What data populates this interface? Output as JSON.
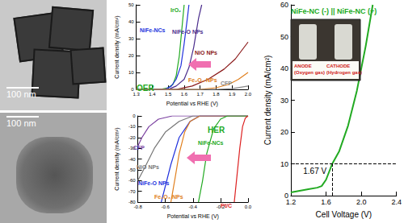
{
  "images": [
    {
      "scale_bar": "100 nm"
    },
    {
      "scale_bar": "100 nm"
    }
  ],
  "chart_data": [
    {
      "type": "line",
      "title": "OER",
      "title_color": "#22aa22",
      "xlabel": "Potential vs RHE (V)",
      "ylabel": "Current density (mA/cm²)",
      "xlim": [
        1.3,
        2.0
      ],
      "xticks": [
        1.3,
        1.4,
        1.5,
        1.6,
        1.7,
        1.8,
        1.9,
        {
          "value": 2.0,
          "label": "2.0"
        }
      ],
      "ylim": [
        0,
        50
      ],
      "yticks": [
        0,
        10,
        20,
        30,
        40,
        50
      ],
      "grid": false,
      "series": [
        {
          "name": "IrO₂",
          "color": "#22aa22",
          "x": [
            1.3,
            1.45,
            1.5,
            1.53,
            1.55,
            1.57,
            1.59,
            1.6
          ],
          "values": [
            0,
            0,
            1,
            3,
            8,
            20,
            40,
            50
          ]
        },
        {
          "name": "NiFe-NCs",
          "color": "#2233dd",
          "x": [
            1.3,
            1.48,
            1.52,
            1.55,
            1.58,
            1.6,
            1.62,
            1.63
          ],
          "values": [
            0,
            0,
            2,
            6,
            14,
            27,
            42,
            50
          ]
        },
        {
          "name": "NiFe-O NPs",
          "color": "#4a2c8c",
          "x": [
            1.3,
            1.5,
            1.55,
            1.6,
            1.63,
            1.66,
            1.69,
            1.71
          ],
          "values": [
            0,
            0,
            2,
            6,
            13,
            25,
            42,
            50
          ]
        },
        {
          "name": "NiO NPs",
          "color": "#8b1a1a",
          "x": [
            1.3,
            1.55,
            1.65,
            1.75,
            1.85,
            1.92,
            2.0
          ],
          "values": [
            0,
            0,
            2,
            6,
            12,
            18,
            28
          ]
        },
        {
          "name": "Fe₂O₃ NPs",
          "color": "#e08020",
          "x": [
            1.3,
            1.7,
            1.8,
            1.88,
            1.94,
            2.0
          ],
          "values": [
            0,
            0,
            1,
            3,
            6,
            10
          ]
        },
        {
          "name": "CFP",
          "color": "#888888",
          "x": [
            1.3,
            1.8,
            1.9,
            2.0
          ],
          "values": [
            0,
            0,
            0.5,
            2
          ]
        }
      ]
    },
    {
      "type": "line",
      "title": "HER",
      "title_color": "#22aa22",
      "xlabel": "Potential vs RHE (V)",
      "ylabel": "Current density (mA/cm²)",
      "xlim": [
        -0.8,
        0.0
      ],
      "xticks": [
        -0.8,
        -0.6,
        -0.4,
        -0.2,
        {
          "value": 0,
          "label": "0.0"
        }
      ],
      "ylim": [
        -80,
        0
      ],
      "yticks": [
        -80,
        -70,
        -60,
        -50,
        -40,
        -30,
        -20,
        -10,
        0
      ],
      "grid": false,
      "series": [
        {
          "name": "CFP",
          "color": "#7a3fa0",
          "x": [
            0,
            -0.55,
            -0.65,
            -0.72,
            -0.77,
            -0.8
          ],
          "values": [
            0,
            0,
            -3,
            -10,
            -20,
            -28
          ]
        },
        {
          "name": "NiO NPs",
          "color": "#777777",
          "x": [
            0,
            -0.4,
            -0.5,
            -0.6,
            -0.68,
            -0.75,
            -0.8
          ],
          "values": [
            0,
            0,
            -5,
            -15,
            -30,
            -48,
            -60
          ]
        },
        {
          "name": "NiFe-O NPs",
          "color": "#2233dd",
          "x": [
            0,
            -0.35,
            -0.42,
            -0.5,
            -0.56,
            -0.6,
            -0.63
          ],
          "values": [
            0,
            0,
            -5,
            -20,
            -45,
            -65,
            -80
          ]
        },
        {
          "name": "Fe₂O₃ NPs",
          "color": "#e08020",
          "x": [
            0,
            -0.35,
            -0.42,
            -0.46,
            -0.5,
            -0.53,
            -0.56
          ],
          "values": [
            0,
            0,
            -5,
            -15,
            -35,
            -58,
            -80
          ]
        },
        {
          "name": "NiFe-NCs",
          "color": "#22aa22",
          "x": [
            0,
            -0.15,
            -0.2,
            -0.25,
            -0.3,
            -0.33,
            -0.36
          ],
          "values": [
            0,
            0,
            -3,
            -12,
            -35,
            -60,
            -80
          ]
        },
        {
          "name": "Pt/C",
          "color": "#dd2222",
          "x": [
            0,
            -0.02,
            -0.04,
            -0.06,
            -0.08,
            -0.1
          ],
          "values": [
            0,
            -2,
            -10,
            -30,
            -55,
            -80
          ]
        }
      ]
    },
    {
      "type": "line",
      "title": "NiFe-NC (-) || NiFe-NC (+)",
      "title_color": "#22aa22",
      "xlabel": "Cell Voltage (V)",
      "ylabel": "Current density (mA/cm²)",
      "xlim": [
        1.2,
        2.4
      ],
      "xticks": [
        1.2,
        1.6,
        {
          "value": 2.0,
          "label": "2.0"
        },
        2.4
      ],
      "ylim": [
        0,
        60
      ],
      "yticks": [
        0,
        10,
        20,
        30,
        40,
        50,
        60
      ],
      "grid": false,
      "series": [
        {
          "name": "NiFe-NC (-) || NiFe-NC (+)",
          "color": "#22aa22",
          "x": [
            1.2,
            1.3,
            1.4,
            1.5,
            1.55,
            1.6,
            1.67,
            1.75,
            1.85,
            1.95,
            2.05,
            2.13
          ],
          "values": [
            1,
            1.5,
            2,
            2.5,
            3,
            5,
            10,
            14,
            22,
            33,
            47,
            60
          ]
        }
      ],
      "annotations": [
        {
          "text": "1.67 V",
          "x": 1.67,
          "y": 10,
          "line_style": "dashed"
        }
      ],
      "inset": {
        "labels": [
          {
            "text": "ANODE",
            "sub": "(Oxygen gas)"
          },
          {
            "text": "CATHODE",
            "sub": "(Hydrogen gas)"
          }
        ]
      }
    }
  ]
}
